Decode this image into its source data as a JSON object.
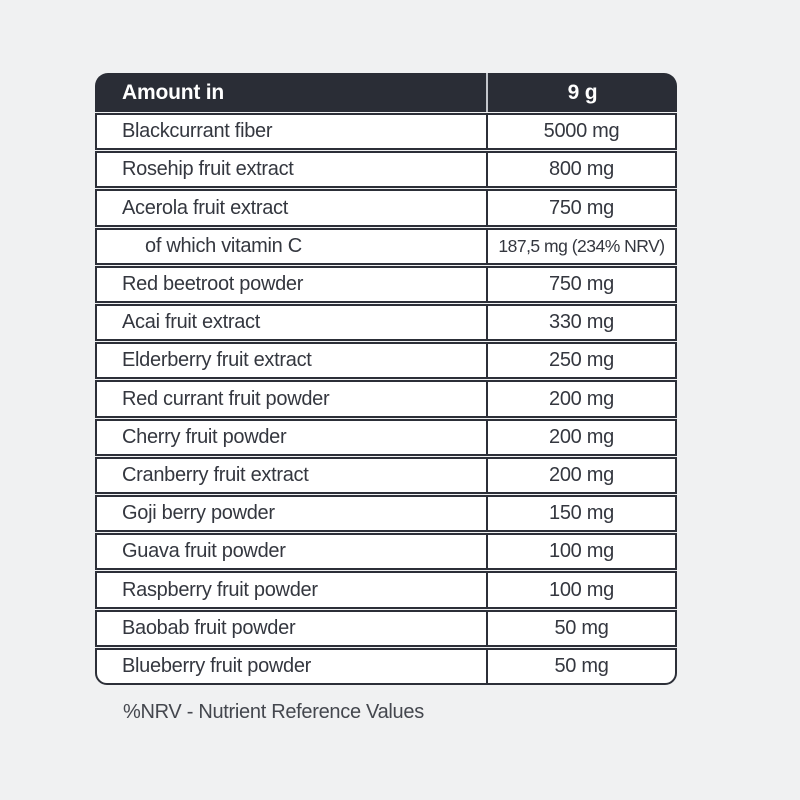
{
  "page": {
    "background_color": "#f0f1f2"
  },
  "table": {
    "header": {
      "col1": "Amount in",
      "col2": "9 g",
      "bg_color": "#2a2d36",
      "text_color": "#ffffff",
      "divider_color": "#c3c6cc"
    },
    "border_color": "#2c2f38",
    "row_bg_color": "#ffffff",
    "text_color": "#34373f",
    "rows": [
      {
        "label": "Blackcurrant fiber",
        "amount": "5000 mg",
        "indent": false
      },
      {
        "label": "Rosehip fruit extract",
        "amount": "800 mg",
        "indent": false
      },
      {
        "label": "Acerola fruit extract",
        "amount": "750 mg",
        "indent": false
      },
      {
        "label": "of which vitamin C",
        "amount": "187,5 mg (234% NRV)",
        "indent": true
      },
      {
        "label": "Red beetroot powder",
        "amount": "750 mg",
        "indent": false
      },
      {
        "label": "Acai fruit extract",
        "amount": "330 mg",
        "indent": false
      },
      {
        "label": "Elderberry fruit extract",
        "amount": "250 mg",
        "indent": false
      },
      {
        "label": "Red currant fruit powder",
        "amount": "200 mg",
        "indent": false
      },
      {
        "label": "Cherry fruit powder",
        "amount": "200 mg",
        "indent": false
      },
      {
        "label": "Cranberry fruit extract",
        "amount": "200 mg",
        "indent": false
      },
      {
        "label": "Goji berry powder",
        "amount": "150 mg",
        "indent": false
      },
      {
        "label": "Guava fruit powder",
        "amount": "100 mg",
        "indent": false
      },
      {
        "label": "Raspberry fruit powder",
        "amount": "100 mg",
        "indent": false
      },
      {
        "label": "Baobab fruit powder",
        "amount": "50 mg",
        "indent": false
      },
      {
        "label": "Blueberry fruit powder",
        "amount": "50 mg",
        "indent": false
      }
    ],
    "footnote": "%NRV - Nutrient Reference Values"
  }
}
